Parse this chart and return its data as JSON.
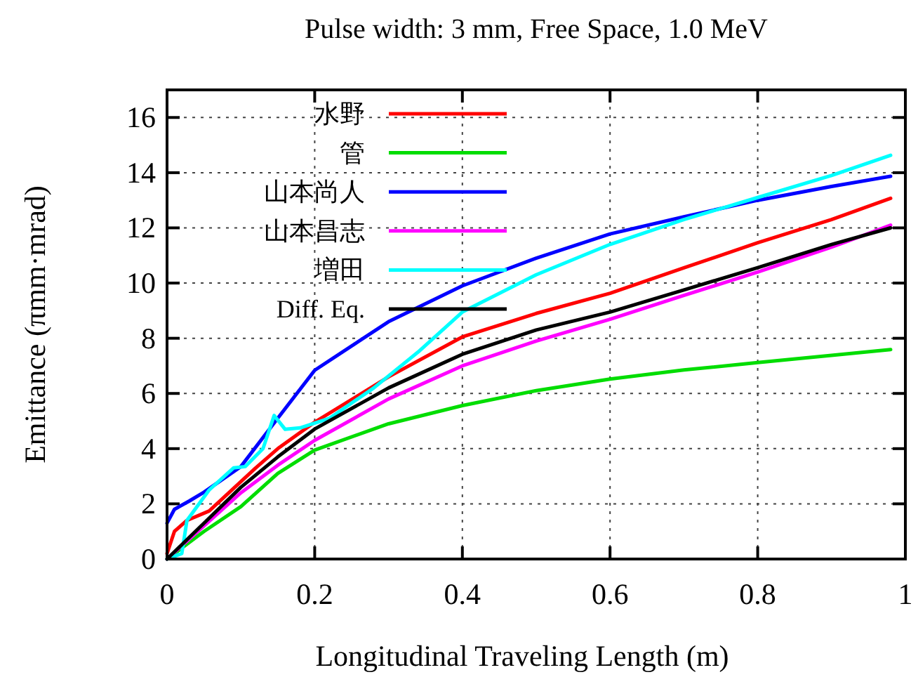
{
  "chart_data": {
    "type": "line",
    "title": "Pulse width: 3 mm, Free Space, 1.0 MeV",
    "xlabel": "Longitudinal Traveling Length (m)",
    "ylabel": "Emittance (πmm·mrad)",
    "xlim": [
      0,
      1
    ],
    "ylim": [
      0,
      17
    ],
    "xticks": [
      0,
      0.2,
      0.4,
      0.6,
      0.8,
      1
    ],
    "yticks": [
      0,
      2,
      4,
      6,
      8,
      10,
      12,
      14,
      16
    ],
    "grid": true,
    "legend": "top left",
    "marker": "none",
    "line_style": "solid",
    "series": [
      {
        "name": "水野",
        "color": "#ff0000",
        "x": [
          0,
          0.01,
          0.027,
          0.057,
          0.12,
          0.15,
          0.2,
          0.3,
          0.4,
          0.5,
          0.6,
          0.7,
          0.8,
          0.9,
          0.98
        ],
        "values": [
          0.2,
          1.0,
          1.4,
          1.74,
          3.3,
          4.0,
          4.96,
          6.6,
          8.05,
          8.9,
          9.63,
          10.55,
          11.46,
          12.3,
          13.07
        ]
      },
      {
        "name": "管",
        "color": "#00dd00",
        "x": [
          0,
          0.05,
          0.1,
          0.15,
          0.2,
          0.3,
          0.4,
          0.5,
          0.6,
          0.7,
          0.8,
          0.9,
          0.98
        ],
        "values": [
          0,
          1.0,
          1.9,
          3.1,
          3.95,
          4.9,
          5.56,
          6.1,
          6.52,
          6.85,
          7.12,
          7.38,
          7.59
        ]
      },
      {
        "name": "山本尚人",
        "color": "#0000ff",
        "x": [
          0,
          0.01,
          0.03,
          0.05,
          0.1,
          0.15,
          0.2,
          0.3,
          0.4,
          0.5,
          0.6,
          0.7,
          0.8,
          0.9,
          0.98
        ],
        "values": [
          1.3,
          1.8,
          2.1,
          2.42,
          3.35,
          5.1,
          6.84,
          8.6,
          9.9,
          10.9,
          11.78,
          12.4,
          13.0,
          13.5,
          13.87
        ]
      },
      {
        "name": "山本昌志",
        "color": "#ff00ff",
        "x": [
          0,
          0.05,
          0.1,
          0.15,
          0.2,
          0.3,
          0.4,
          0.5,
          0.6,
          0.7,
          0.8,
          0.9,
          0.98
        ],
        "values": [
          0,
          1.2,
          2.4,
          3.4,
          4.3,
          5.8,
          7.0,
          7.9,
          8.69,
          9.55,
          10.4,
          11.3,
          12.1
        ]
      },
      {
        "name": "増田",
        "color": "#00ffff",
        "x": [
          0,
          0.02,
          0.027,
          0.057,
          0.09,
          0.106,
          0.13,
          0.145,
          0.16,
          0.18,
          0.22,
          0.28,
          0.34,
          0.4,
          0.5,
          0.6,
          0.7,
          0.8,
          0.9,
          0.98
        ],
        "values": [
          0,
          0.2,
          1.4,
          2.5,
          3.3,
          3.35,
          4.0,
          5.2,
          4.7,
          4.75,
          5.1,
          6.2,
          7.5,
          8.95,
          10.3,
          11.4,
          12.3,
          13.1,
          13.9,
          14.63
        ]
      },
      {
        "name": "Diff. Eq.",
        "color": "#000000",
        "x": [
          0,
          0.05,
          0.1,
          0.15,
          0.2,
          0.3,
          0.4,
          0.5,
          0.6,
          0.7,
          0.8,
          0.9,
          0.98
        ],
        "values": [
          0,
          1.3,
          2.6,
          3.7,
          4.71,
          6.2,
          7.42,
          8.3,
          8.95,
          9.75,
          10.56,
          11.4,
          12.0
        ]
      }
    ]
  }
}
